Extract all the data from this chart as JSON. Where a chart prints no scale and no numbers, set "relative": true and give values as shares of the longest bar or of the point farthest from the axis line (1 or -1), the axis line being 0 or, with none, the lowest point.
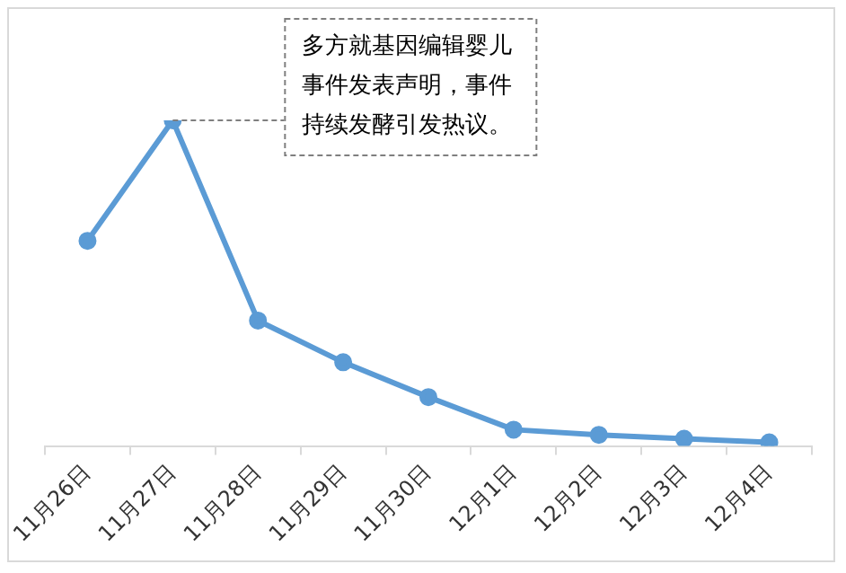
{
  "chart_data": {
    "type": "line",
    "relative": true,
    "categories": [
      "11月26日",
      "11月27日",
      "11月28日",
      "11月29日",
      "11月30日",
      "12月1日",
      "12月2日",
      "12月3日",
      "12月4日"
    ],
    "series": [
      {
        "color": "#5b9bd5",
        "values": [
          0.63,
          1,
          0.385,
          0.257,
          0.15,
          0.05,
          0.034,
          0.022,
          0.011
        ]
      }
    ],
    "marker": "circle",
    "line_style": "solid",
    "grid": false,
    "legend": false,
    "annotations": [
      {
        "text": "多方就基因编辑婴儿事件发表声明，事件持续发酵引发热议。",
        "x": "11月27日",
        "y": 1
      }
    ]
  }
}
